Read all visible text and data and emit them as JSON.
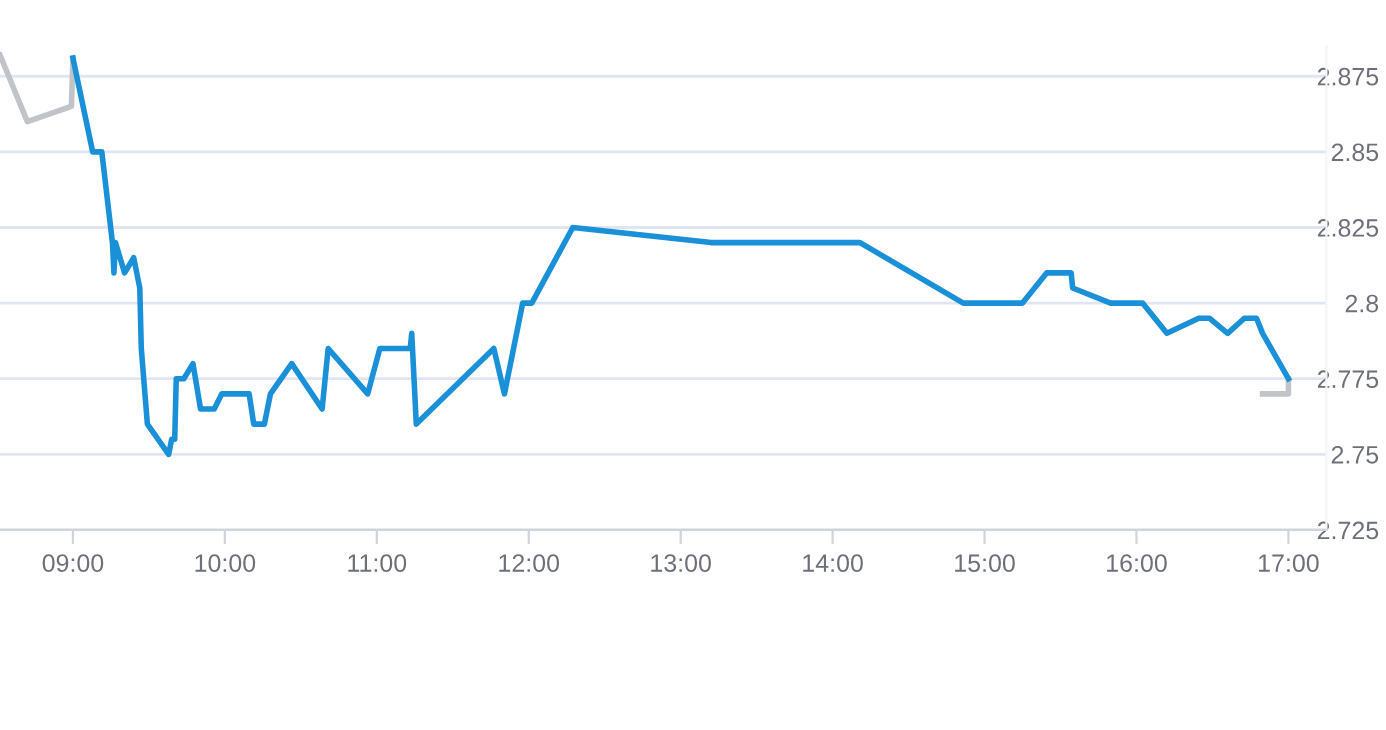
{
  "chart_data": {
    "type": "line",
    "x": [
      9.0,
      9.13,
      9.19,
      9.26,
      9.27,
      9.28,
      9.34,
      9.4,
      9.44,
      9.45,
      9.49,
      9.63,
      9.65,
      9.67,
      9.68,
      9.73,
      9.79,
      9.84,
      9.93,
      9.98,
      10.16,
      10.19,
      10.26,
      10.3,
      10.44,
      10.64,
      10.68,
      10.94,
      11.02,
      11.22,
      11.23,
      11.26,
      11.77,
      11.84,
      11.96,
      12.02,
      12.29,
      13.2,
      14.18,
      14.86,
      15.25,
      15.41,
      15.57,
      15.58,
      15.83,
      16.04,
      16.2,
      16.41,
      16.48,
      16.6,
      16.71,
      16.79,
      16.83,
      17.0
    ],
    "series": [
      {
        "color": "#1a90d8",
        "values": [
          2.881,
          2.85,
          2.85,
          2.82,
          2.81,
          2.82,
          2.81,
          2.815,
          2.805,
          2.785,
          2.76,
          2.75,
          2.755,
          2.755,
          2.775,
          2.775,
          2.78,
          2.765,
          2.765,
          2.77,
          2.77,
          2.76,
          2.76,
          2.77,
          2.78,
          2.765,
          2.785,
          2.77,
          2.785,
          2.785,
          2.79,
          2.76,
          2.785,
          2.77,
          2.8,
          2.8,
          2.825,
          2.82,
          2.82,
          2.8,
          2.8,
          2.81,
          2.81,
          2.805,
          2.8,
          2.8,
          2.79,
          2.795,
          2.795,
          2.79,
          2.795,
          2.795,
          2.79,
          2.775
        ]
      },
      {
        "color": "#c0c4c8",
        "x": [
          8.52,
          8.7,
          8.99,
          9.0
        ],
        "values": [
          2.882,
          2.86,
          2.865,
          2.881
        ]
      },
      {
        "color": "#c0c4c8",
        "x": [
          17.0,
          17.0,
          16.83
        ],
        "values": [
          2.775,
          2.77,
          2.77
        ]
      }
    ],
    "xlim": [
      8.52,
      17.25
    ],
    "xticks": [
      {
        "value": 9,
        "label": "09:00"
      },
      {
        "value": 10,
        "label": "10:00"
      },
      {
        "value": 11,
        "label": "11:00"
      },
      {
        "value": 12,
        "label": "12:00"
      },
      {
        "value": 13,
        "label": "13:00"
      },
      {
        "value": 14,
        "label": "14:00"
      },
      {
        "value": 15,
        "label": "15:00"
      },
      {
        "value": 16,
        "label": "16:00"
      },
      {
        "value": 17,
        "label": "17:00"
      }
    ],
    "ylim": [
      2.725,
      2.885
    ],
    "yticks": [
      2.725,
      2.75,
      2.775,
      2.8,
      2.825,
      2.85,
      2.875
    ],
    "grid": "y",
    "marker": "none",
    "line_style": "solid"
  }
}
